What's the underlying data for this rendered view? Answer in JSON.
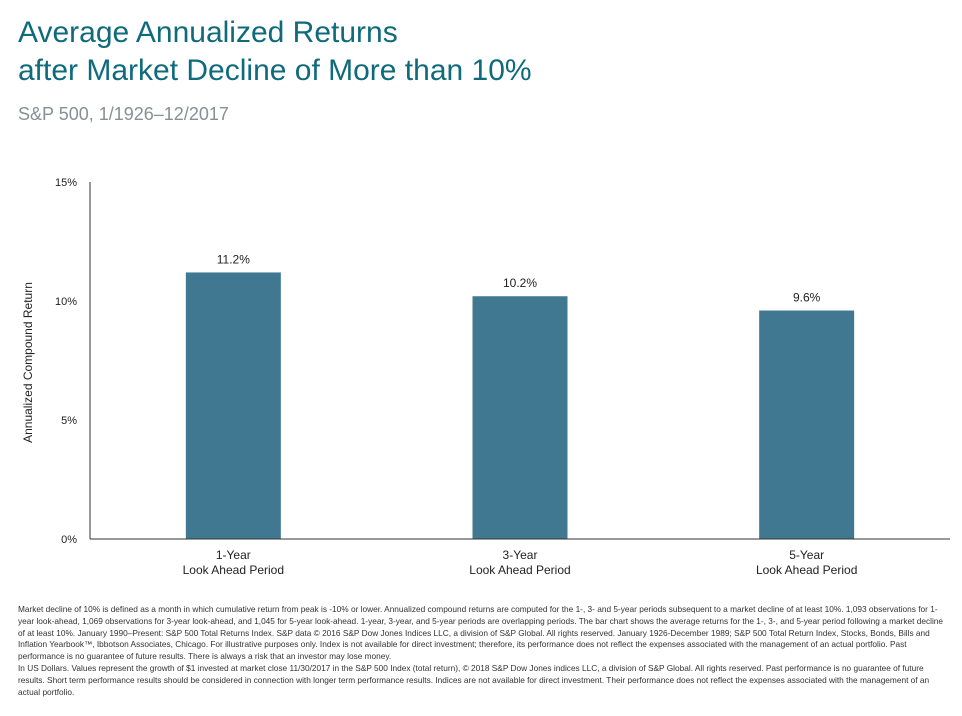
{
  "header": {
    "title_line1": "Average Annualized Returns",
    "title_line2": "after Market Decline of More than 10%",
    "subtitle": "S&P 500, 1/1926–12/2017"
  },
  "colors": {
    "title": "#0f6b7c",
    "subtitle": "#8a8f94",
    "bar": "#417891",
    "axis": "#333333"
  },
  "chart_data": {
    "type": "bar",
    "categories": [
      [
        "1-Year",
        "Look Ahead Period"
      ],
      [
        "3-Year",
        "Look Ahead Period"
      ],
      [
        "5-Year",
        "Look Ahead Period"
      ]
    ],
    "values": [
      11.2,
      10.2,
      9.6
    ],
    "value_labels": [
      "11.2%",
      "10.2%",
      "9.6%"
    ],
    "ylabel": "Annualized Compound Return",
    "ylim": [
      0,
      15
    ],
    "yticks": [
      0,
      5,
      10,
      15
    ],
    "ytick_labels": [
      "0%",
      "5%",
      "10%",
      "15%"
    ],
    "grid": false,
    "legend": "none"
  },
  "footnote": {
    "paragraph1": "Market decline of 10% is defined as a month in which cumulative return from peak is -10% or lower. Annualized compound returns are computed for the 1-, 3- and 5-year periods subsequent to a market decline of at least 10%. 1,093 observations for 1-year look-ahead, 1,069 observations for 3-year look-ahead, and 1,045 for 5-year look-ahead. 1-year, 3-year, and 5-year periods are overlapping periods. The bar chart shows the average returns for the 1-, 3-, and 5-year period following a market decline of at least 10%. January 1990–Present: S&P 500 Total Returns Index. S&P data © 2016 S&P Dow Jones Indices LLC, a division of S&P Global. All rights reserved. January 1926-December 1989; S&P 500 Total Return Index, Stocks, Bonds, Bills and Inflation Yearbook™, Ibbotson Associates, Chicago. For illustrative purposes only. Index is not available for direct investment; therefore, its performance does not reflect the expenses associated with the management of an actual portfolio. Past performance is no guarantee of future results. There is always a risk that an investor may lose money.",
    "paragraph2": "In US Dollars. Values represent the growth of $1 invested at market close 11/30/2017 in the S&P 500 Index (total return), © 2018 S&P Dow Jones indices LLC, a division of S&P Global. All rights reserved. Past performance is no guarantee of future results. Short term performance results should be considered in connection with longer term performance results. Indices are not available for direct investment. Their performance does not reflect the expenses associated with the management of an actual portfolio."
  }
}
